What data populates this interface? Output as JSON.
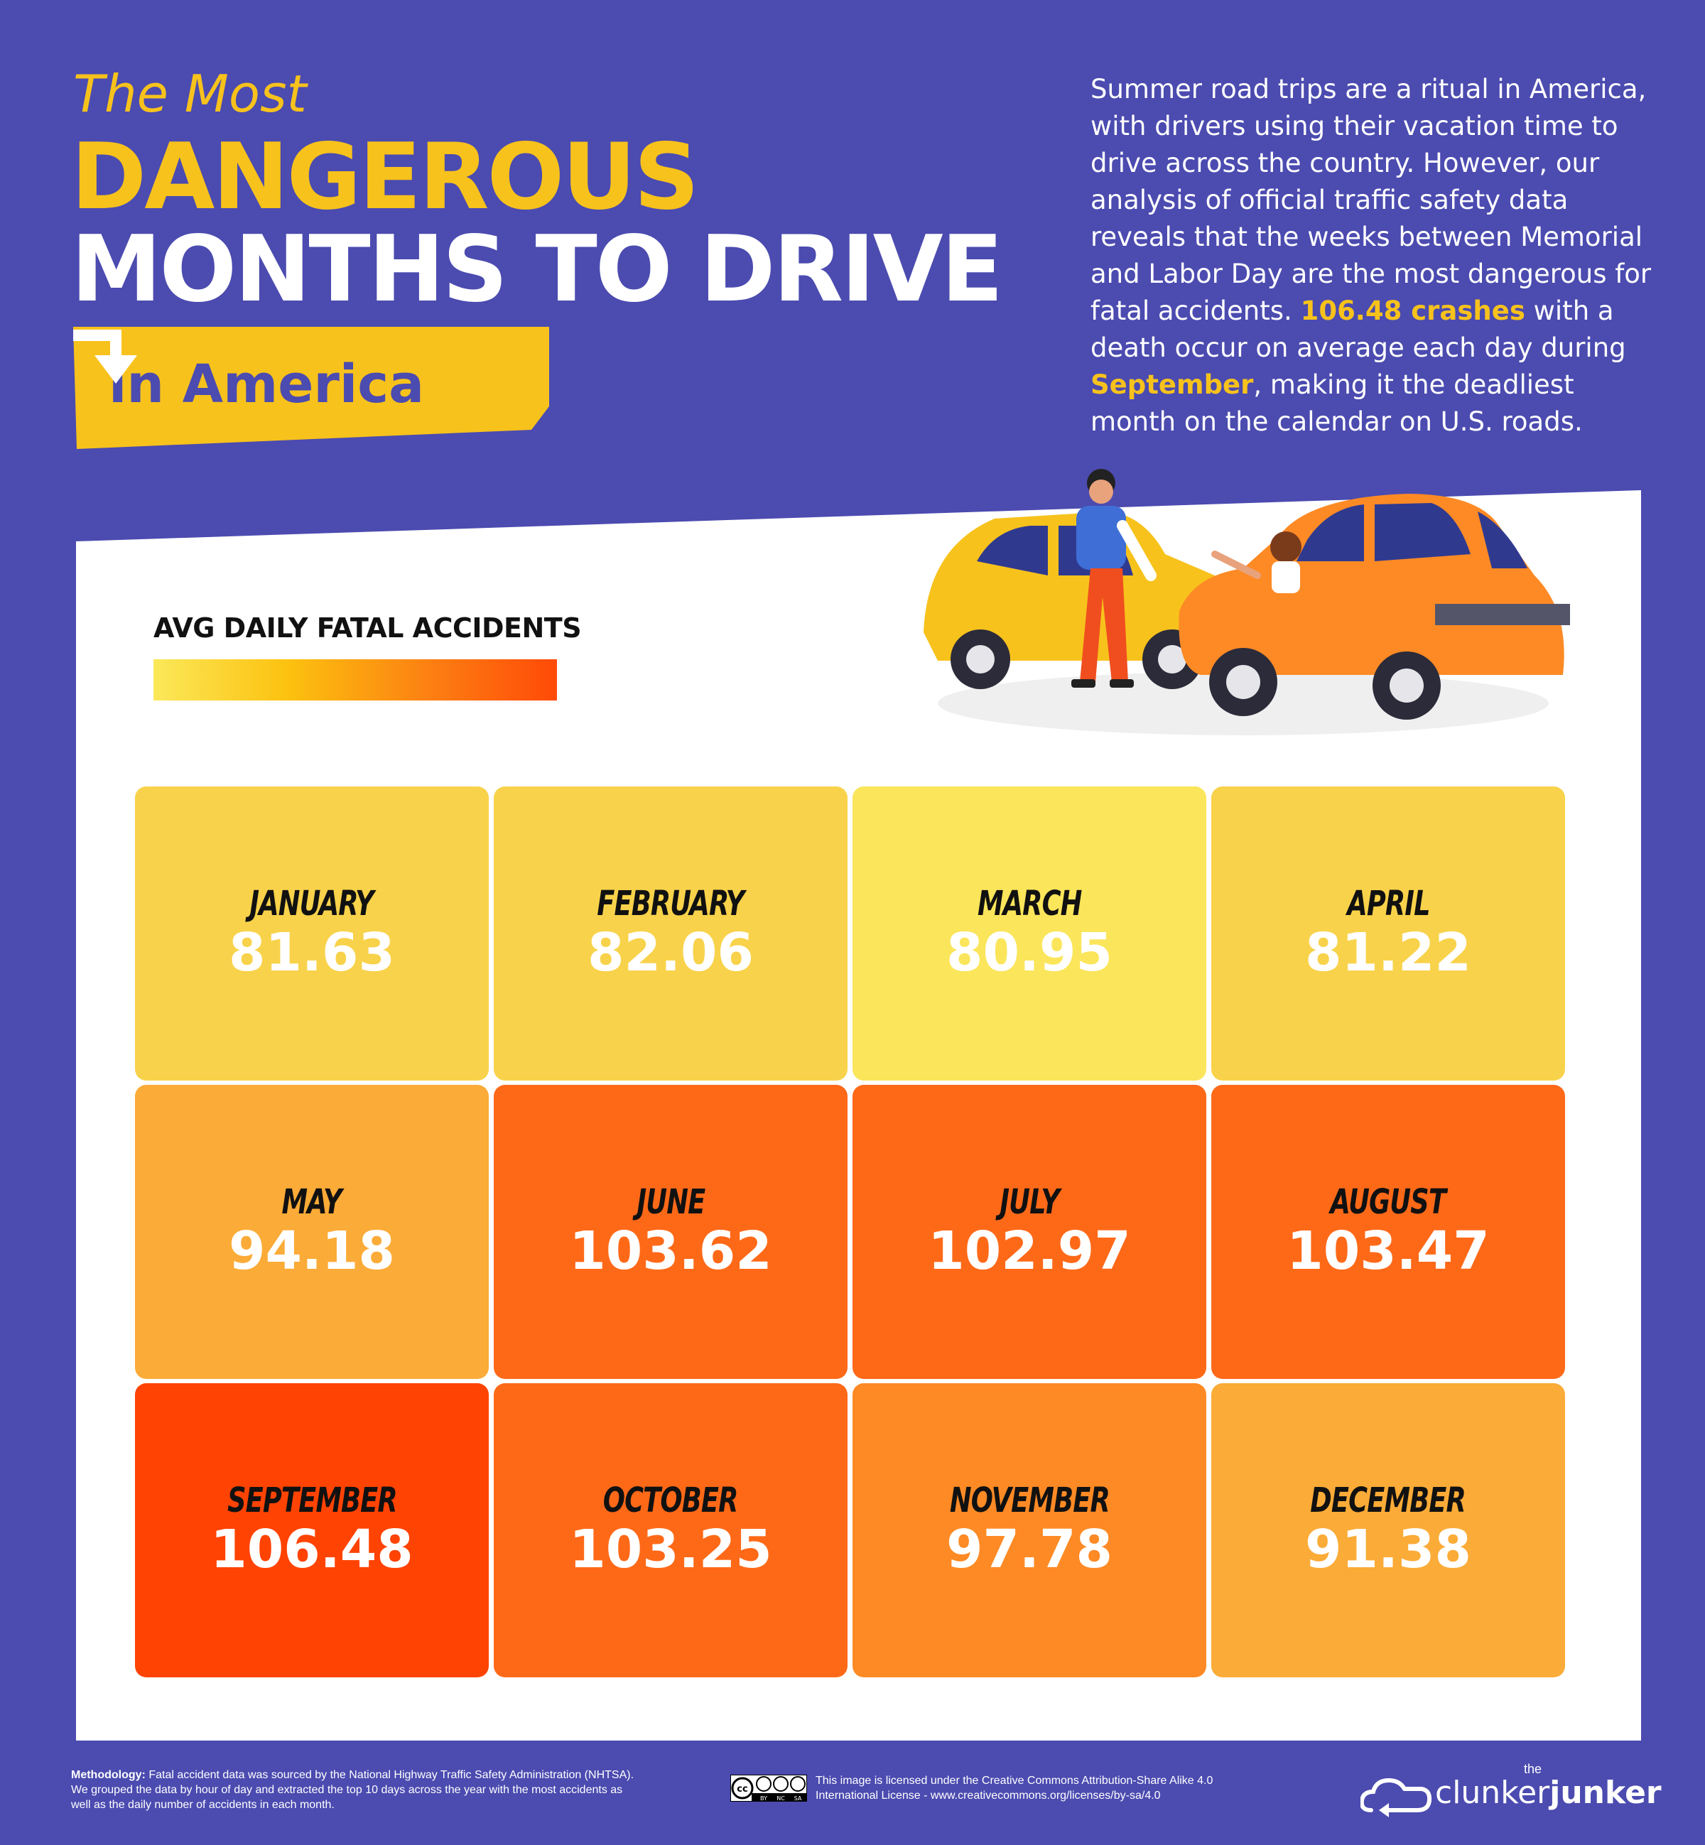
{
  "header": {
    "pre_title": "The Most",
    "title_line1": "DANGEROUS",
    "title_line2": "MONTHS TO DRIVE",
    "tag": "in America"
  },
  "intro": {
    "part1": "Summer road trips are a ritual in America, with drivers using their vacation time to drive across the country. However, our analysis of official traffic safety data reveals that the weeks between Memorial and Labor Day are the most dangerous for fatal accidents.",
    "highlight1": "106.48 crashes",
    "part2": "with a death occur on average each day during",
    "highlight2": "September",
    "part3": ", making it the deadliest month on the calendar on U.S. roads."
  },
  "legend": {
    "title": "AVG DAILY FATAL ACCIDENTS",
    "gradient": [
      "#fbe85a",
      "#fcc20f",
      "#fc7d12",
      "#ff4a07"
    ]
  },
  "colors": {
    "background": "#4b4bb0",
    "accent": "#f7c21c",
    "panel": "#ffffff"
  },
  "chart_data": {
    "type": "heatmap",
    "title": "AVG DAILY FATAL ACCIDENTS",
    "categories": [
      "JANUARY",
      "FEBRUARY",
      "MARCH",
      "APRIL",
      "MAY",
      "JUNE",
      "JULY",
      "AUGUST",
      "SEPTEMBER",
      "OCTOBER",
      "NOVEMBER",
      "DECEMBER"
    ],
    "values": [
      81.63,
      82.06,
      80.95,
      81.22,
      94.18,
      103.62,
      102.97,
      103.47,
      106.48,
      103.25,
      97.78,
      91.38
    ],
    "value_labels": [
      "81.63",
      "82.06",
      "80.95",
      "81.22",
      "94.18",
      "103.62",
      "102.97",
      "103.47",
      "106.48",
      "103.25",
      "97.78",
      "91.38"
    ],
    "cell_colors": [
      "#f8d24a",
      "#f8d24a",
      "#fbe55a",
      "#f8d24a",
      "#fbab37",
      "#fe6918",
      "#fe6918",
      "#fe6918",
      "#ff4303",
      "#fe6918",
      "#fd8a25",
      "#fbab37"
    ],
    "grid": {
      "rows": 3,
      "columns": 4
    }
  },
  "footer": {
    "methodology_label": "Methodology:",
    "methodology_text": "Fatal accident data was sourced by the National Highway Traffic Safety Administration (NHTSA). We grouped the data by hour of day and extracted the top 10 days across the year with the most accidents as well as the daily number of accidents in each month.",
    "license_text": "This image is licensed under the Creative Commons Attribution-Share Alike 4.0 International License - www.creativecommons.org/licenses/by-sa/4.0",
    "cc_labels": [
      "BY",
      "NC",
      "SA"
    ],
    "logo_small": "the",
    "logo_light": "clunker",
    "logo_bold": "junker"
  }
}
